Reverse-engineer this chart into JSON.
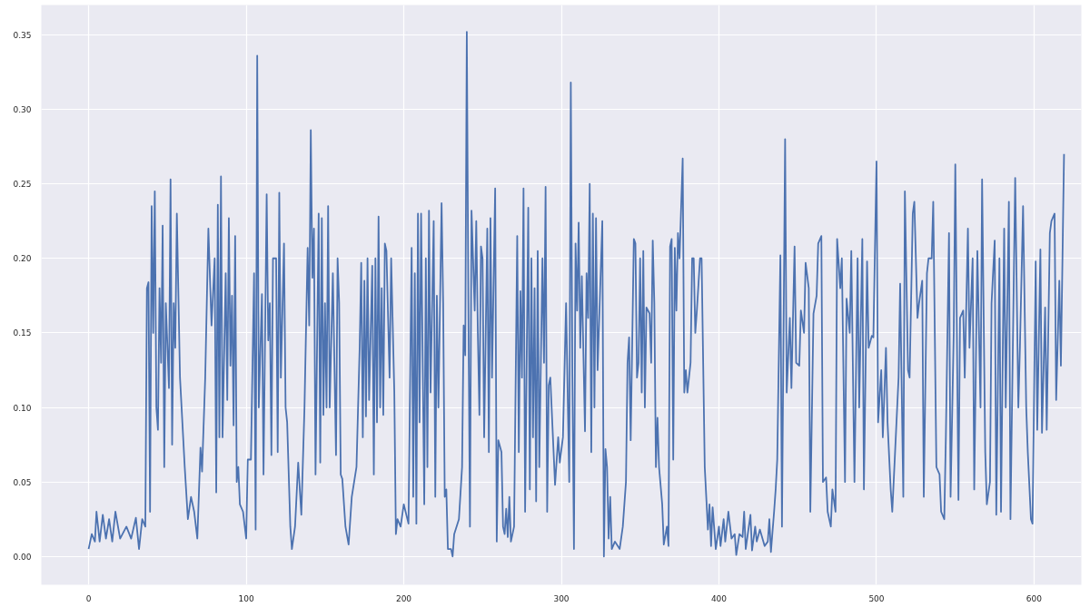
{
  "chart_data": {
    "type": "line",
    "x": [
      0,
      2,
      4,
      5,
      7,
      9,
      11,
      13,
      15,
      17,
      20,
      24,
      27,
      30,
      32,
      34,
      36,
      37,
      38,
      39,
      40,
      41,
      42,
      43,
      44,
      45,
      46,
      47,
      48,
      49,
      51,
      52,
      53,
      54,
      55,
      56,
      58,
      61,
      63,
      65,
      67,
      69,
      71,
      72,
      74,
      76,
      78,
      80,
      81,
      82,
      83,
      84,
      85,
      87,
      88,
      89,
      90,
      91,
      92,
      93,
      94,
      95,
      96,
      98,
      100,
      101,
      103,
      105,
      106,
      107,
      108,
      110,
      111,
      113,
      114,
      115,
      116,
      117,
      119,
      120,
      121,
      122,
      124,
      125,
      126,
      128,
      129,
      131,
      133,
      135,
      137,
      139,
      140,
      141,
      142,
      143,
      144,
      146,
      147,
      148,
      149,
      150,
      151,
      152,
      153,
      155,
      157,
      158,
      159,
      160,
      161,
      163,
      165,
      167,
      170,
      172,
      173,
      174,
      175,
      176,
      177,
      178,
      180,
      181,
      182,
      183,
      184,
      185,
      186,
      187,
      188,
      189,
      191,
      192,
      194,
      195,
      196,
      198,
      200,
      203,
      205,
      206,
      207,
      208,
      209,
      210,
      211,
      213,
      214,
      215,
      216,
      217,
      219,
      220,
      221,
      222,
      224,
      225,
      226,
      227,
      228,
      230,
      231,
      232,
      235,
      237,
      238,
      239,
      240,
      241,
      242,
      243,
      245,
      246,
      247,
      248,
      249,
      250,
      251,
      253,
      254,
      255,
      256,
      258,
      259,
      260,
      262,
      263,
      264,
      265,
      266,
      267,
      268,
      270,
      272,
      273,
      274,
      275,
      276,
      277,
      279,
      280,
      281,
      282,
      283,
      284,
      285,
      286,
      288,
      289,
      290,
      291,
      292,
      293,
      296,
      298,
      299,
      301,
      303,
      305,
      306,
      307,
      308,
      309,
      310,
      311,
      312,
      313,
      315,
      316,
      317,
      318,
      319,
      320,
      321,
      322,
      323,
      326,
      327,
      328,
      329,
      330,
      331,
      332,
      334,
      337,
      339,
      341,
      342,
      343,
      344,
      346,
      347,
      348,
      349,
      350,
      351,
      352,
      353,
      354,
      356,
      357,
      358,
      359,
      360,
      361,
      362,
      364,
      365,
      367,
      368,
      369,
      370,
      371,
      372,
      373,
      374,
      375,
      377,
      378,
      379,
      380,
      382,
      383,
      384,
      385,
      386,
      388,
      389,
      391,
      393,
      394,
      395,
      396,
      398,
      400,
      401,
      403,
      404,
      406,
      408,
      410,
      411,
      413,
      415,
      416,
      417,
      420,
      421,
      423,
      424,
      426,
      429,
      431,
      432,
      433,
      435,
      436,
      437,
      439,
      440,
      442,
      443,
      445,
      446,
      448,
      449,
      451,
      452,
      454,
      455,
      457,
      458,
      460,
      462,
      463,
      465,
      466,
      468,
      469,
      471,
      472,
      474,
      475,
      477,
      478,
      480,
      481,
      483,
      484,
      486,
      488,
      489,
      491,
      492,
      494,
      495,
      497,
      498,
      500,
      501,
      503,
      504,
      506,
      507,
      509,
      510,
      514,
      515,
      517,
      518,
      520,
      521,
      523,
      524,
      526,
      527,
      529,
      530,
      532,
      533,
      535,
      536,
      538,
      540,
      541,
      543,
      544,
      546,
      547,
      549,
      550,
      552,
      553,
      555,
      556,
      558,
      559,
      561,
      562,
      564,
      566,
      567,
      569,
      570,
      572,
      573,
      575,
      576,
      578,
      579,
      581,
      582,
      584,
      585,
      587,
      588,
      590,
      591,
      593,
      595,
      596,
      598,
      599,
      601,
      602,
      604,
      605,
      607,
      608,
      610,
      611,
      613,
      614,
      616,
      617,
      619
    ],
    "values": [
      0.005,
      0.015,
      0.01,
      0.03,
      0.01,
      0.028,
      0.012,
      0.025,
      0.01,
      0.03,
      0.012,
      0.02,
      0.012,
      0.026,
      0.005,
      0.025,
      0.02,
      0.18,
      0.184,
      0.03,
      0.235,
      0.15,
      0.245,
      0.1,
      0.085,
      0.18,
      0.13,
      0.222,
      0.06,
      0.17,
      0.113,
      0.253,
      0.075,
      0.17,
      0.14,
      0.23,
      0.12,
      0.06,
      0.025,
      0.04,
      0.03,
      0.012,
      0.073,
      0.057,
      0.12,
      0.22,
      0.155,
      0.2,
      0.043,
      0.236,
      0.08,
      0.255,
      0.08,
      0.19,
      0.105,
      0.227,
      0.128,
      0.175,
      0.088,
      0.215,
      0.05,
      0.06,
      0.035,
      0.03,
      0.012,
      0.065,
      0.065,
      0.19,
      0.018,
      0.336,
      0.1,
      0.176,
      0.055,
      0.243,
      0.145,
      0.17,
      0.068,
      0.2,
      0.2,
      0.07,
      0.244,
      0.12,
      0.21,
      0.1,
      0.09,
      0.02,
      0.005,
      0.02,
      0.063,
      0.028,
      0.1,
      0.207,
      0.155,
      0.286,
      0.187,
      0.22,
      0.055,
      0.23,
      0.063,
      0.227,
      0.095,
      0.17,
      0.1,
      0.235,
      0.1,
      0.19,
      0.068,
      0.2,
      0.17,
      0.055,
      0.052,
      0.02,
      0.008,
      0.04,
      0.06,
      0.14,
      0.197,
      0.08,
      0.185,
      0.094,
      0.2,
      0.105,
      0.195,
      0.055,
      0.2,
      0.09,
      0.228,
      0.1,
      0.18,
      0.095,
      0.21,
      0.205,
      0.12,
      0.2,
      0.11,
      0.015,
      0.025,
      0.02,
      0.035,
      0.022,
      0.207,
      0.04,
      0.19,
      0.022,
      0.23,
      0.09,
      0.23,
      0.035,
      0.2,
      0.06,
      0.232,
      0.11,
      0.225,
      0.04,
      0.175,
      0.1,
      0.237,
      0.17,
      0.04,
      0.045,
      0.005,
      0.005,
      0.0,
      0.015,
      0.025,
      0.06,
      0.155,
      0.135,
      0.352,
      0.17,
      0.02,
      0.232,
      0.165,
      0.225,
      0.15,
      0.095,
      0.208,
      0.2,
      0.08,
      0.22,
      0.07,
      0.227,
      0.12,
      0.247,
      0.01,
      0.078,
      0.07,
      0.02,
      0.015,
      0.032,
      0.013,
      0.04,
      0.01,
      0.02,
      0.215,
      0.07,
      0.178,
      0.12,
      0.247,
      0.03,
      0.234,
      0.045,
      0.2,
      0.08,
      0.18,
      0.037,
      0.205,
      0.06,
      0.2,
      0.13,
      0.248,
      0.03,
      0.115,
      0.12,
      0.048,
      0.08,
      0.063,
      0.08,
      0.17,
      0.05,
      0.318,
      0.12,
      0.005,
      0.21,
      0.165,
      0.224,
      0.14,
      0.188,
      0.084,
      0.19,
      0.16,
      0.25,
      0.07,
      0.23,
      0.1,
      0.227,
      0.125,
      0.225,
      0.0,
      0.072,
      0.06,
      0.012,
      0.04,
      0.005,
      0.01,
      0.005,
      0.02,
      0.05,
      0.13,
      0.147,
      0.078,
      0.213,
      0.21,
      0.12,
      0.13,
      0.2,
      0.11,
      0.205,
      0.1,
      0.167,
      0.163,
      0.13,
      0.212,
      0.17,
      0.06,
      0.093,
      0.06,
      0.035,
      0.008,
      0.02,
      0.007,
      0.208,
      0.213,
      0.065,
      0.207,
      0.165,
      0.217,
      0.2,
      0.267,
      0.11,
      0.125,
      0.11,
      0.13,
      0.2,
      0.2,
      0.15,
      0.165,
      0.2,
      0.2,
      0.06,
      0.018,
      0.035,
      0.007,
      0.033,
      0.005,
      0.02,
      0.007,
      0.025,
      0.01,
      0.03,
      0.012,
      0.015,
      0.001,
      0.015,
      0.013,
      0.03,
      0.005,
      0.028,
      0.004,
      0.02,
      0.01,
      0.018,
      0.007,
      0.01,
      0.025,
      0.003,
      0.03,
      0.045,
      0.065,
      0.202,
      0.02,
      0.28,
      0.11,
      0.16,
      0.113,
      0.208,
      0.13,
      0.128,
      0.165,
      0.15,
      0.197,
      0.18,
      0.03,
      0.163,
      0.175,
      0.21,
      0.215,
      0.05,
      0.053,
      0.03,
      0.02,
      0.045,
      0.03,
      0.213,
      0.18,
      0.2,
      0.05,
      0.173,
      0.15,
      0.205,
      0.05,
      0.2,
      0.1,
      0.213,
      0.045,
      0.198,
      0.14,
      0.148,
      0.147,
      0.265,
      0.09,
      0.125,
      0.08,
      0.14,
      0.09,
      0.045,
      0.03,
      0.12,
      0.183,
      0.04,
      0.245,
      0.125,
      0.12,
      0.23,
      0.238,
      0.16,
      0.17,
      0.185,
      0.04,
      0.19,
      0.2,
      0.2,
      0.238,
      0.06,
      0.055,
      0.03,
      0.025,
      0.08,
      0.217,
      0.04,
      0.15,
      0.263,
      0.038,
      0.16,
      0.165,
      0.12,
      0.22,
      0.14,
      0.2,
      0.045,
      0.205,
      0.1,
      0.253,
      0.07,
      0.035,
      0.05,
      0.17,
      0.212,
      0.028,
      0.2,
      0.03,
      0.22,
      0.1,
      0.238,
      0.025,
      0.178,
      0.254,
      0.1,
      0.14,
      0.235,
      0.1,
      0.07,
      0.025,
      0.022,
      0.198,
      0.085,
      0.206,
      0.083,
      0.167,
      0.085,
      0.217,
      0.225,
      0.23,
      0.105,
      0.185,
      0.128,
      0.27
    ],
    "color": "#4c72b0",
    "xlim": [
      -30,
      630
    ],
    "ylim": [
      -0.019,
      0.37
    ],
    "xticks": [
      0,
      100,
      200,
      300,
      400,
      500,
      600
    ],
    "yticks": [
      {
        "value": 0,
        "label": "0.00"
      },
      {
        "value": 0.05,
        "label": "0.05"
      },
      {
        "value": 0.1,
        "label": "0.10"
      },
      {
        "value": 0.15,
        "label": "0.15"
      },
      {
        "value": 0.2,
        "label": "0.20"
      },
      {
        "value": 0.25,
        "label": "0.25"
      },
      {
        "value": 0.3,
        "label": "0.30"
      },
      {
        "value": 0.35,
        "label": "0.35"
      }
    ],
    "grid": true
  }
}
